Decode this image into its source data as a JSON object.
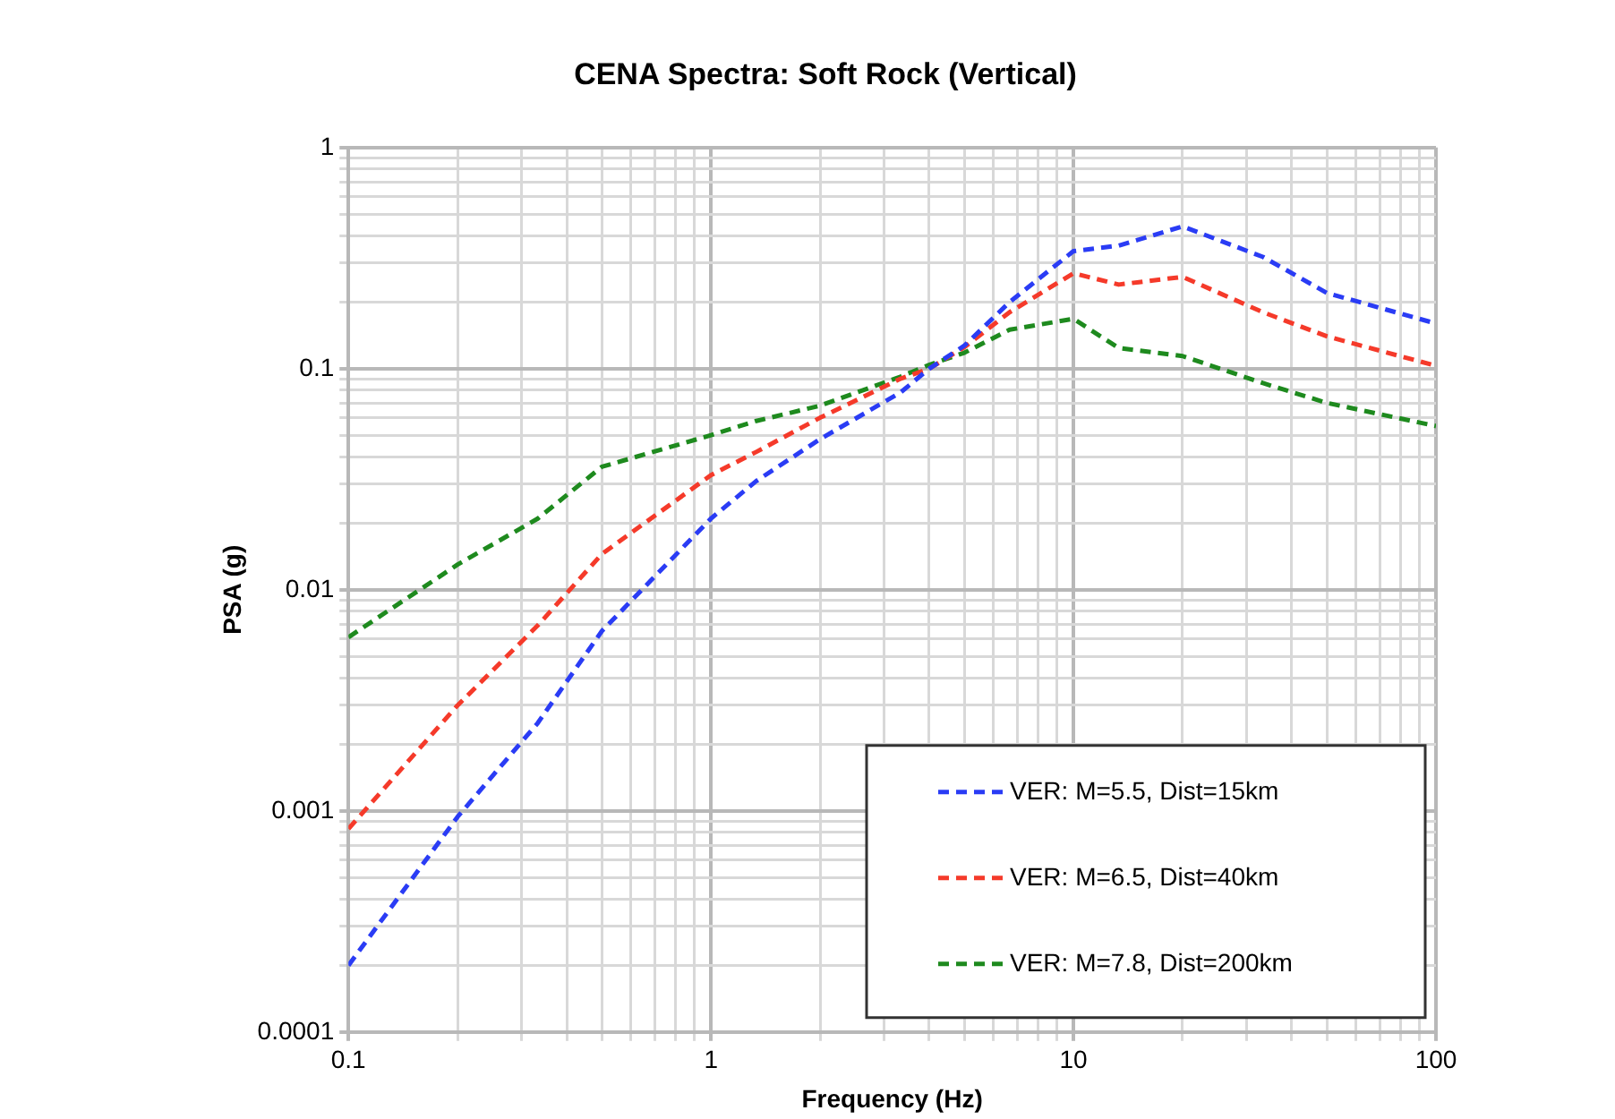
{
  "chart_data": {
    "type": "line",
    "title": "CENA Spectra: Soft Rock (Vertical)",
    "xlabel": "Frequency (Hz)",
    "ylabel": "PSA (g)",
    "x": [
      0.1,
      0.2,
      0.333,
      0.5,
      1,
      1.333,
      2,
      3.333,
      4,
      5,
      6.667,
      10,
      13.33,
      20,
      33.33,
      50,
      100
    ],
    "series": [
      {
        "name": "VER: M=5.5, Dist=15km",
        "color": "#2a3cf5",
        "values": [
          0.0002,
          0.00094,
          0.0025,
          0.0065,
          0.021,
          0.031,
          0.048,
          0.078,
          0.1,
          0.127,
          0.2,
          0.34,
          0.36,
          0.44,
          0.32,
          0.22,
          0.16
        ]
      },
      {
        "name": "VER: M=6.5, Dist=40km",
        "color": "#f53a2a",
        "values": [
          0.00083,
          0.003,
          0.0069,
          0.0145,
          0.033,
          0.042,
          0.06,
          0.09,
          0.1,
          0.125,
          0.18,
          0.27,
          0.24,
          0.26,
          0.18,
          0.14,
          0.103
        ]
      },
      {
        "name": "VER: M=7.8, Dist=200km",
        "color": "#1e8a1e",
        "values": [
          0.0061,
          0.013,
          0.021,
          0.036,
          0.05,
          0.058,
          0.068,
          0.092,
          0.104,
          0.118,
          0.15,
          0.168,
          0.124,
          0.114,
          0.086,
          0.07,
          0.055
        ]
      }
    ],
    "log": "xy",
    "xlim": [
      0.1,
      100
    ],
    "ylim": [
      0.0001,
      1
    ],
    "xticks": [
      0.1,
      {
        "value": 0.2,
        "label": null
      },
      {
        "value": 0.3,
        "label": null
      },
      {
        "value": 0.4,
        "label": null
      },
      {
        "value": 0.5,
        "label": null
      },
      {
        "value": 0.6,
        "label": null
      },
      {
        "value": 0.7,
        "label": null
      },
      {
        "value": 0.8,
        "label": null
      },
      {
        "value": 0.9,
        "label": null
      },
      1,
      {
        "value": 2,
        "label": null
      },
      {
        "value": 3,
        "label": null
      },
      {
        "value": 4,
        "label": null
      },
      {
        "value": 5,
        "label": null
      },
      {
        "value": 6,
        "label": null
      },
      {
        "value": 7,
        "label": null
      },
      {
        "value": 8,
        "label": null
      },
      {
        "value": 9,
        "label": null
      },
      10,
      {
        "value": 20,
        "label": null
      },
      {
        "value": 30,
        "label": null
      },
      {
        "value": 40,
        "label": null
      },
      {
        "value": 50,
        "label": null
      },
      {
        "value": 60,
        "label": null
      },
      {
        "value": 70,
        "label": null
      },
      {
        "value": 80,
        "label": null
      },
      {
        "value": 90,
        "label": null
      },
      100
    ],
    "yticks": [
      0.0001,
      {
        "value": 0.0002,
        "label": null
      },
      {
        "value": 0.0003,
        "label": null
      },
      {
        "value": 0.0004,
        "label": null
      },
      {
        "value": 0.0005,
        "label": null
      },
      {
        "value": 0.0006,
        "label": null
      },
      {
        "value": 0.0007,
        "label": null
      },
      {
        "value": 0.0008,
        "label": null
      },
      {
        "value": 0.0009,
        "label": null
      },
      0.001,
      {
        "value": 0.002,
        "label": null
      },
      {
        "value": 0.003,
        "label": null
      },
      {
        "value": 0.004,
        "label": null
      },
      {
        "value": 0.005,
        "label": null
      },
      {
        "value": 0.006,
        "label": null
      },
      {
        "value": 0.007,
        "label": null
      },
      {
        "value": 0.008,
        "label": null
      },
      {
        "value": 0.009,
        "label": null
      },
      0.01,
      {
        "value": 0.02,
        "label": null
      },
      {
        "value": 0.03,
        "label": null
      },
      {
        "value": 0.04,
        "label": null
      },
      {
        "value": 0.05,
        "label": null
      },
      {
        "value": 0.06,
        "label": null
      },
      {
        "value": 0.07,
        "label": null
      },
      {
        "value": 0.08,
        "label": null
      },
      {
        "value": 0.09,
        "label": null
      },
      0.1,
      {
        "value": 0.2,
        "label": null
      },
      {
        "value": 0.3,
        "label": null
      },
      {
        "value": 0.4,
        "label": null
      },
      {
        "value": 0.5,
        "label": null
      },
      {
        "value": 0.6,
        "label": null
      },
      {
        "value": 0.7,
        "label": null
      },
      {
        "value": 0.8,
        "label": null
      },
      {
        "value": 0.9,
        "label": null
      },
      1
    ],
    "grid": true,
    "legend": "bottom right",
    "marker": "none",
    "line_style": "dashed"
  }
}
